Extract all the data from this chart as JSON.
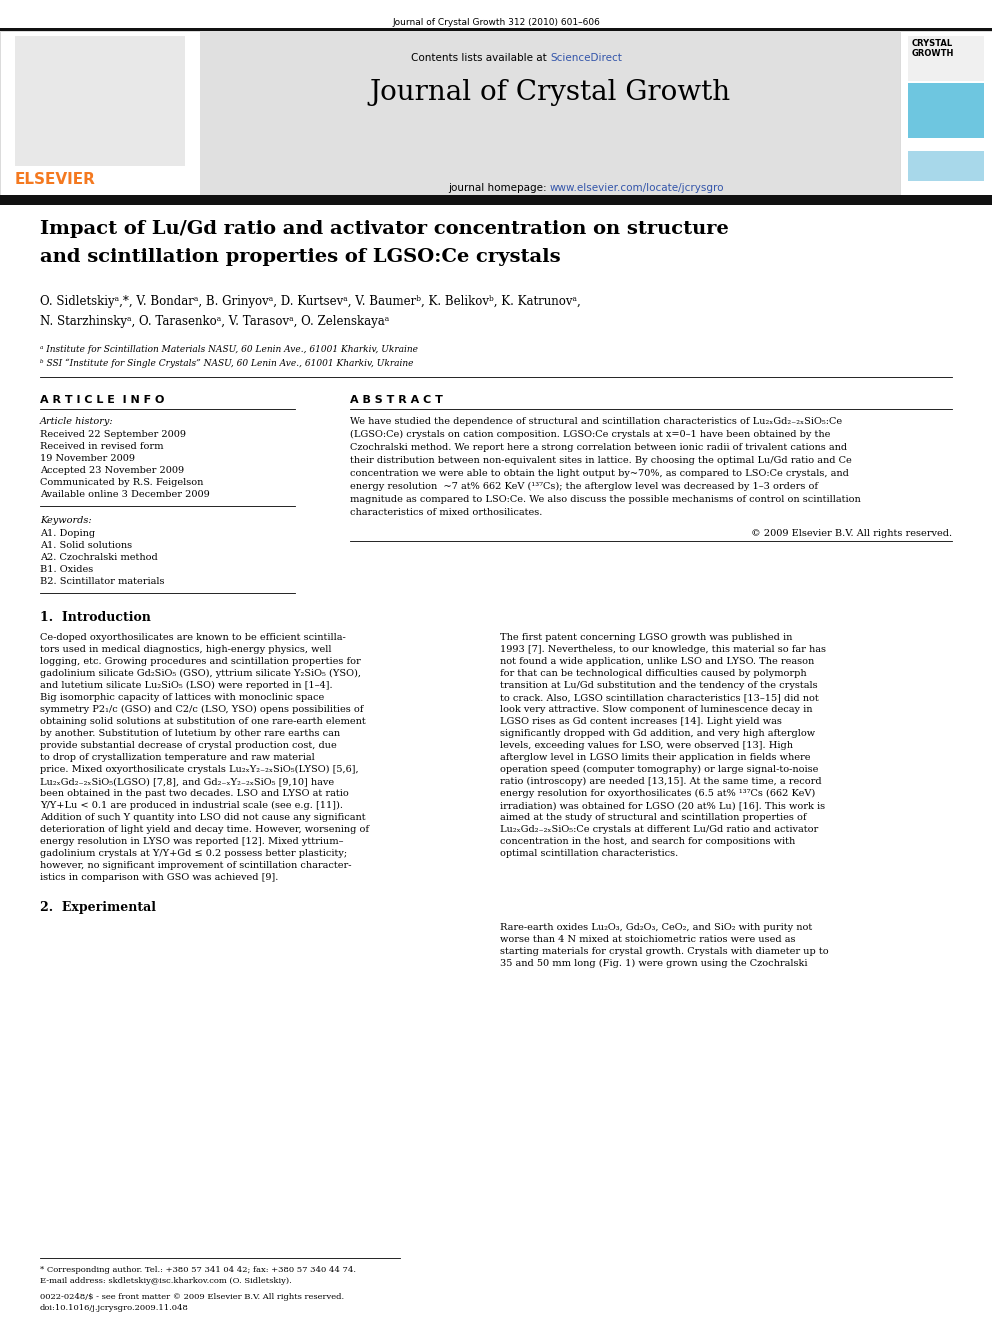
{
  "page_width": 9.92,
  "page_height": 13.23,
  "dpi": 100,
  "bg": "#ffffff",
  "journal_ref": "Journal of Crystal Growth 312 (2010) 601–606",
  "header_bg": "#e0e0e0",
  "contents_text": "Contents lists available at ",
  "sciencedirect_text": "ScienceDirect",
  "sciencedirect_color": "#3355aa",
  "journal_title": "Journal of Crystal Growth",
  "homepage_prefix": "journal homepage: ",
  "homepage_url": "www.elsevier.com/locate/jcrysgro",
  "homepage_color": "#3355aa",
  "elsevier_color": "#f47920",
  "thick_bar_color": "#111111",
  "thin_bar_color": "#111111",
  "crystal_blue": "#6ec6e0",
  "crystal_blue2": "#a8d8ea",
  "paper_title_line1": "Impact of Lu/Gd ratio and activator concentration on structure",
  "paper_title_line2": "and scintillation properties of LGSO:Ce crystals",
  "authors_line1": "O. Sidletskiyᵃ,*, V. Bondarᵃ, B. Grinyovᵃ, D. Kurtsevᵃ, V. Baumerᵇ, K. Belikovᵇ, K. Katrunovᵃ,",
  "authors_line2": "N. Starzhinskyᵃ, O. Tarasenkoᵃ, V. Tarasovᵃ, O. Zelenskayaᵃ",
  "affil_a": "ᵃ Institute for Scintillation Materials NASU, 60 Lenin Ave., 61001 Kharkiv, Ukraine",
  "affil_b": "ᵇ SSI “Institute for Single Crystals” NASU, 60 Lenin Ave., 61001 Kharkiv, Ukraine",
  "article_info_header": "A R T I C L E  I N F O",
  "abstract_header": "A B S T R A C T",
  "article_history_label": "Article history:",
  "article_history": [
    "Received 22 September 2009",
    "Received in revised form",
    "19 November 2009",
    "Accepted 23 November 2009",
    "Communicated by R.S. Feigelson",
    "Available online 3 December 2009"
  ],
  "keywords_label": "Keywords:",
  "keywords": [
    "A1. Doping",
    "A1. Solid solutions",
    "A2. Czochralski method",
    "B1. Oxides",
    "B2. Scintillator materials"
  ],
  "abstract_lines": [
    "We have studied the dependence of structural and scintillation characteristics of Lu₂ₓGd₂₋₂ₓSiO₅:Ce",
    "(LGSO:Ce) crystals on cation composition. LGSO:Ce crystals at x=0–1 have been obtained by the",
    "Czochralski method. We report here a strong correlation between ionic radii of trivalent cations and",
    "their distribution between non-equivalent sites in lattice. By choosing the optimal Lu/Gd ratio and Ce",
    "concentration we were able to obtain the light output by~70%, as compared to LSO:Ce crystals, and",
    "energy resolution  ~7 at% 662 KeV (¹³⁷Cs); the afterglow level was decreased by 1–3 orders of",
    "magnitude as compared to LSO:Ce. We also discuss the possible mechanisms of control on scintillation",
    "characteristics of mixed orthosilicates."
  ],
  "copyright": "© 2009 Elsevier B.V. All rights reserved.",
  "intro_header": "1.  Introduction",
  "intro_col1_lines": [
    "Ce-doped oxyorthosilicates are known to be efficient scintilla-",
    "tors used in medical diagnostics, high-energy physics, well",
    "logging, etc. Growing procedures and scintillation properties for",
    "gadolinium silicate Gd₂SiO₅ (GSO), yttrium silicate Y₂SiO₅ (YSO),",
    "and lutetium silicate Lu₂SiO₅ (LSO) were reported in [1–4].",
    "Big isomorphic capacity of lattices with monoclinic space",
    "symmetry P2₁/c (GSO) and C2/c (LSO, YSO) opens possibilities of",
    "obtaining solid solutions at substitution of one rare-earth element",
    "by another. Substitution of lutetium by other rare earths can",
    "provide substantial decrease of crystal production cost, due",
    "to drop of crystallization temperature and raw material",
    "price. Mixed oxyorthosilicate crystals Lu₂ₓY₂₋₂ₓSiO₅(LYSO) [5,6],",
    "Lu₂ₓGd₂₋₂ₓSiO₅(LGSO) [7,8], and Gd₂₋ₓY₂₋₂ₓSiO₅ [9,10] have",
    "been obtained in the past two decades. LSO and LYSO at ratio",
    "Y/Y+Lu < 0.1 are produced in industrial scale (see e.g. [11]).",
    "Addition of such Y quantity into LSO did not cause any significant",
    "deterioration of light yield and decay time. However, worsening of",
    "energy resolution in LYSO was reported [12]. Mixed yttrium–",
    "gadolinium crystals at Y/Y+Gd ≤ 0.2 possess better plasticity;",
    "however, no significant improvement of scintillation character-",
    "istics in comparison with GSO was achieved [9]."
  ],
  "intro_col2_lines": [
    "The first patent concerning LGSO growth was published in",
    "1993 [7]. Nevertheless, to our knowledge, this material so far has",
    "not found a wide application, unlike LSO and LYSO. The reason",
    "for that can be technological difficulties caused by polymorph",
    "transition at Lu/Gd substitution and the tendency of the crystals",
    "to crack. Also, LGSO scintillation characteristics [13–15] did not",
    "look very attractive. Slow component of luminescence decay in",
    "LGSO rises as Gd content increases [14]. Light yield was",
    "significantly dropped with Gd addition, and very high afterglow",
    "levels, exceeding values for LSO, were observed [13]. High",
    "afterglow level in LGSO limits their application in fields where",
    "operation speed (computer tomography) or large signal-to-noise",
    "ratio (introscopy) are needed [13,15]. At the same time, a record",
    "energy resolution for oxyorthosilicates (6.5 at% ¹³⁷Cs (662 KeV)",
    "irradiation) was obtained for LGSO (20 at% Lu) [16]. This work is",
    "aimed at the study of structural and scintillation properties of",
    "Lu₂ₓGd₂₋₂ₓSiO₅:Ce crystals at different Lu/Gd ratio and activator",
    "concentration in the host, and search for compositions with",
    "optimal scintillation characteristics."
  ],
  "sec2_header": "2.  Experimental",
  "sec2_col2_lines": [
    "Rare-earth oxides Lu₂O₃, Gd₂O₃, CeO₂, and SiO₂ with purity not",
    "worse than 4 N mixed at stoichiometric ratios were used as",
    "starting materials for crystal growth. Crystals with diameter up to",
    "35 and 50 mm long (Fig. 1) were grown using the Czochralski"
  ],
  "footnote_line": "* Corresponding author. Tel.: +380 57 341 04 42; fax: +380 57 340 44 74.",
  "footnote_email": "E-mail address: skdletskiy@isc.kharkov.com (O. Sidletskiy).",
  "footer1": "0022-0248/$ - see front matter © 2009 Elsevier B.V. All rights reserved.",
  "footer2": "doi:10.1016/j.jcrysgro.2009.11.048"
}
